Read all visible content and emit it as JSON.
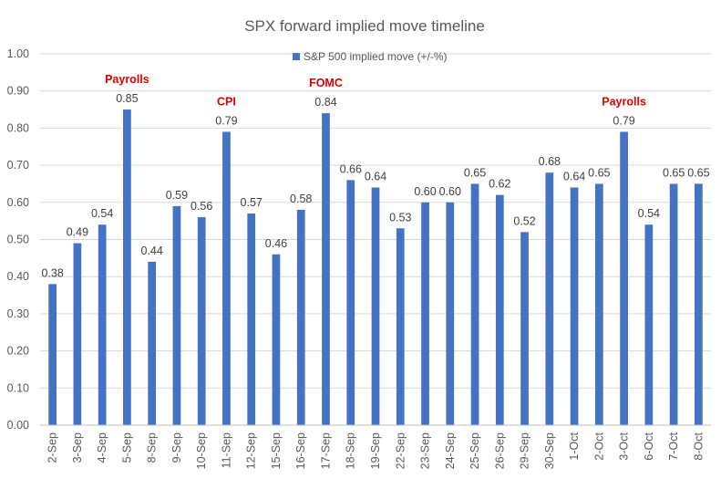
{
  "chart_data": {
    "type": "bar",
    "title": "SPX forward implied move timeline",
    "xlabel": "",
    "ylabel": "",
    "ylim": [
      0,
      1.0
    ],
    "yticks": [
      "0.00",
      "0.10",
      "0.20",
      "0.30",
      "0.40",
      "0.50",
      "0.60",
      "0.70",
      "0.80",
      "0.90",
      "1.00"
    ],
    "grid": true,
    "legend": "top-center",
    "categories": [
      "2-Sep",
      "3-Sep",
      "4-Sep",
      "5-Sep",
      "8-Sep",
      "9-Sep",
      "10-Sep",
      "11-Sep",
      "12-Sep",
      "15-Sep",
      "16-Sep",
      "17-Sep",
      "18-Sep",
      "19-Sep",
      "22-Sep",
      "23-Sep",
      "24-Sep",
      "25-Sep",
      "26-Sep",
      "29-Sep",
      "30-Sep",
      "1-Oct",
      "2-Oct",
      "3-Oct",
      "6-Oct",
      "7-Oct",
      "8-Oct"
    ],
    "series": [
      {
        "name": "S&P 500 implied move (+/-%)",
        "color": "#4472c4",
        "values": [
          0.38,
          0.49,
          0.54,
          0.85,
          0.44,
          0.59,
          0.56,
          0.79,
          0.57,
          0.46,
          0.58,
          0.84,
          0.66,
          0.64,
          0.53,
          0.6,
          0.6,
          0.65,
          0.62,
          0.52,
          0.68,
          0.64,
          0.65,
          0.79,
          0.54,
          0.65,
          0.65
        ],
        "labels": [
          "0.38",
          "0.49",
          "0.54",
          "0.85",
          "0.44",
          "0.59",
          "0.56",
          "0.79",
          "0.57",
          "0.46",
          "0.58",
          "0.84",
          "0.66",
          "0.64",
          "0.53",
          "0.60",
          "0.60",
          "0.65",
          "0.62",
          "0.52",
          "0.68",
          "0.64",
          "0.65",
          "0.79",
          "0.54",
          "0.65",
          "0.65"
        ]
      }
    ],
    "annotations": [
      {
        "category": "5-Sep",
        "text": "Payrolls",
        "color": "#e00000"
      },
      {
        "category": "11-Sep",
        "text": "CPI",
        "color": "#e00000"
      },
      {
        "category": "17-Sep",
        "text": "FOMC",
        "color": "#e00000"
      },
      {
        "category": "3-Oct",
        "text": "Payrolls",
        "color": "#e00000"
      }
    ]
  }
}
